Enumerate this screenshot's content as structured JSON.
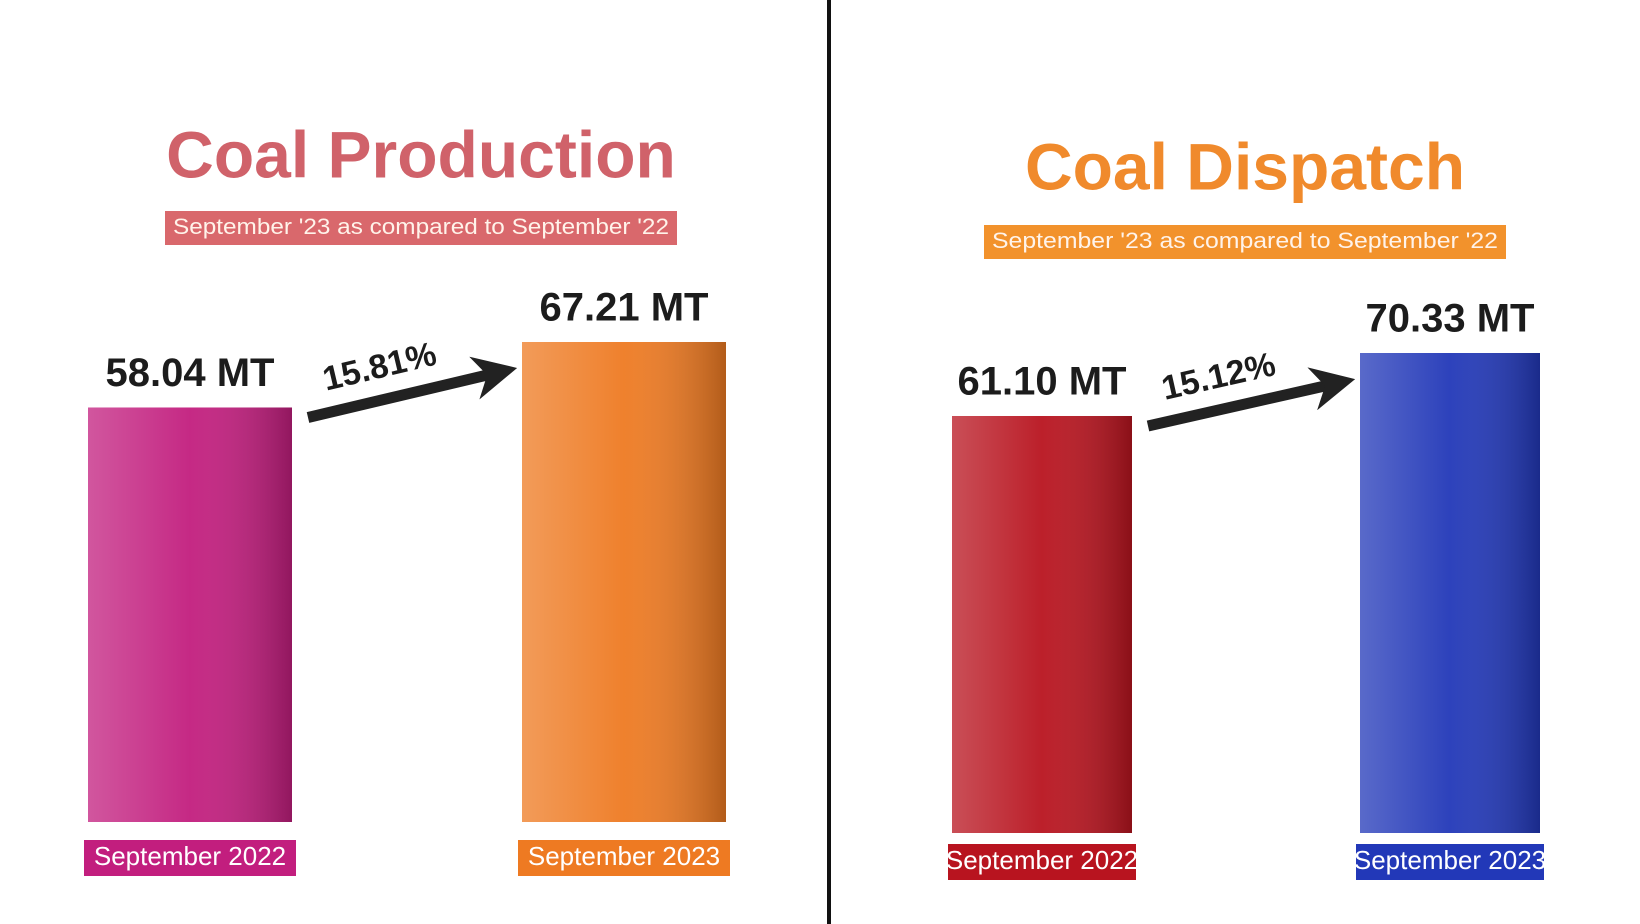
{
  "chart_data": [
    {
      "type": "bar",
      "title": "Coal Production",
      "title_color": "#d0626a",
      "subtitle": "September '23 as compared to September '22",
      "subtitle_color": "#d9686c",
      "categories": [
        "September 2022",
        "September 2023"
      ],
      "values": [
        58.04,
        67.21
      ],
      "value_labels": [
        "58.04 MT",
        "67.21 MT"
      ],
      "colors": [
        "#c21e7e",
        "#ee7a22"
      ],
      "annotation": "15.81%"
    },
    {
      "type": "bar",
      "title": "Coal Dispatch",
      "title_color": "#f08a2c",
      "subtitle": "September '23 as compared to September '22",
      "subtitle_color": "#f2922c",
      "categories": [
        "September 2022",
        "September 2023"
      ],
      "values": [
        61.1,
        70.33
      ],
      "value_labels": [
        "61.10 MT",
        "70.33 MT"
      ],
      "colors": [
        "#b8141f",
        "#2238b8"
      ],
      "annotation": "15.12%"
    }
  ]
}
